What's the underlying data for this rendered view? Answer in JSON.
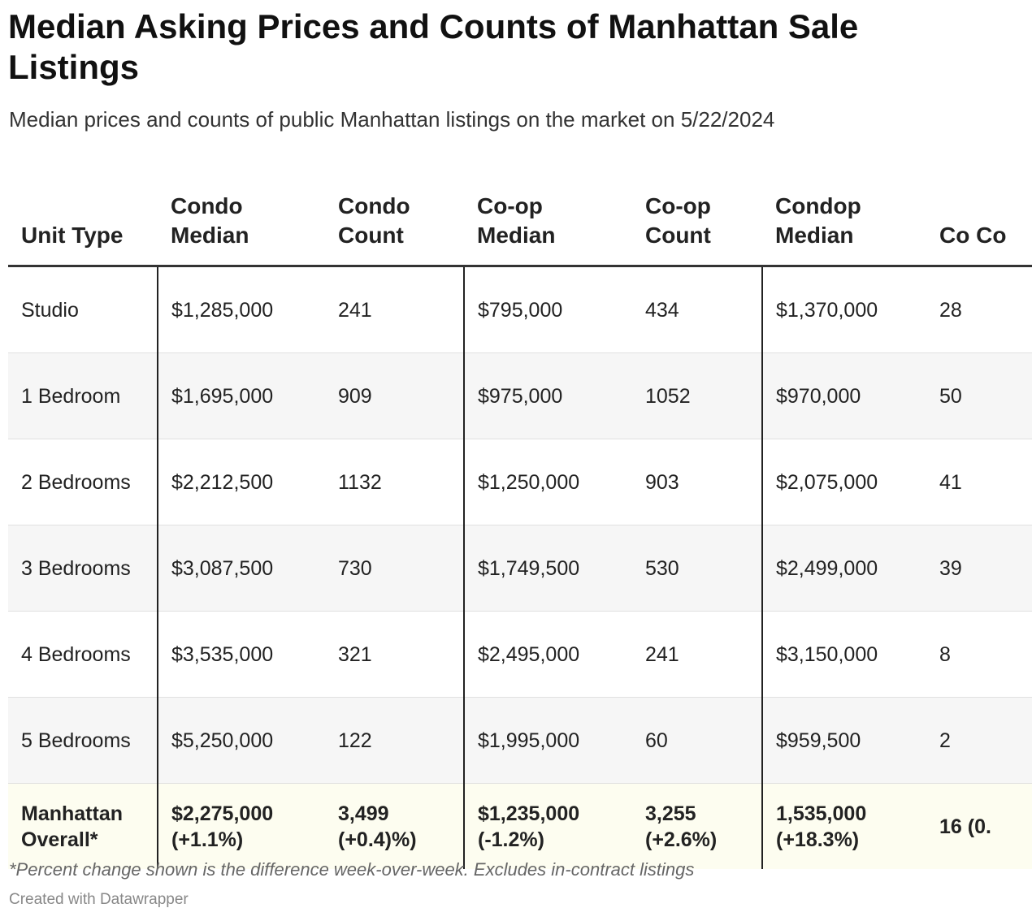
{
  "title": "Median Asking Prices and Counts of Manhattan Sale Listings",
  "subtitle": "Median prices and counts of public Manhattan listings on the market on 5/22/2024",
  "footnote": "*Percent change shown is the difference week-over-week. Excludes in-contract listings",
  "credit": "Created with Datawrapper",
  "colors": {
    "total_row_bg": "#fdfdf0",
    "alt_row_bg": "#f6f6f6",
    "rule": "#333333"
  },
  "chart_data": {
    "type": "table",
    "columns": [
      "Unit Type",
      "Condo Median",
      "Condo Count",
      "Co-op Median",
      "Co-op Count",
      "Condop Median",
      "Co Co"
    ],
    "rows": [
      [
        "Studio",
        "$1,285,000",
        "241",
        "$795,000",
        "434",
        "$1,370,000",
        "28"
      ],
      [
        "1 Bedroom",
        "$1,695,000",
        "909",
        "$975,000",
        "1052",
        "$970,000",
        "50"
      ],
      [
        "2 Bedrooms",
        "$2,212,500",
        "1132",
        "$1,250,000",
        "903",
        "$2,075,000",
        "41"
      ],
      [
        "3 Bedrooms",
        "$3,087,500",
        "730",
        "$1,749,500",
        "530",
        "$2,499,000",
        "39"
      ],
      [
        "4 Bedrooms",
        "$3,535,000",
        "321",
        "$2,495,000",
        "241",
        "$3,150,000",
        "8"
      ],
      [
        "5 Bedrooms",
        "$5,250,000",
        "122",
        "$1,995,000",
        "60",
        "$959,500",
        "2"
      ],
      [
        "Manhattan Overall*",
        "$2,275,000 (+1.1%)",
        "3,499 (+0.4)%)",
        "$1,235,000 (-1.2%)",
        "3,255 (+2.6%)",
        "1,535,000 (+18.3%)",
        "16 (0."
      ]
    ]
  }
}
